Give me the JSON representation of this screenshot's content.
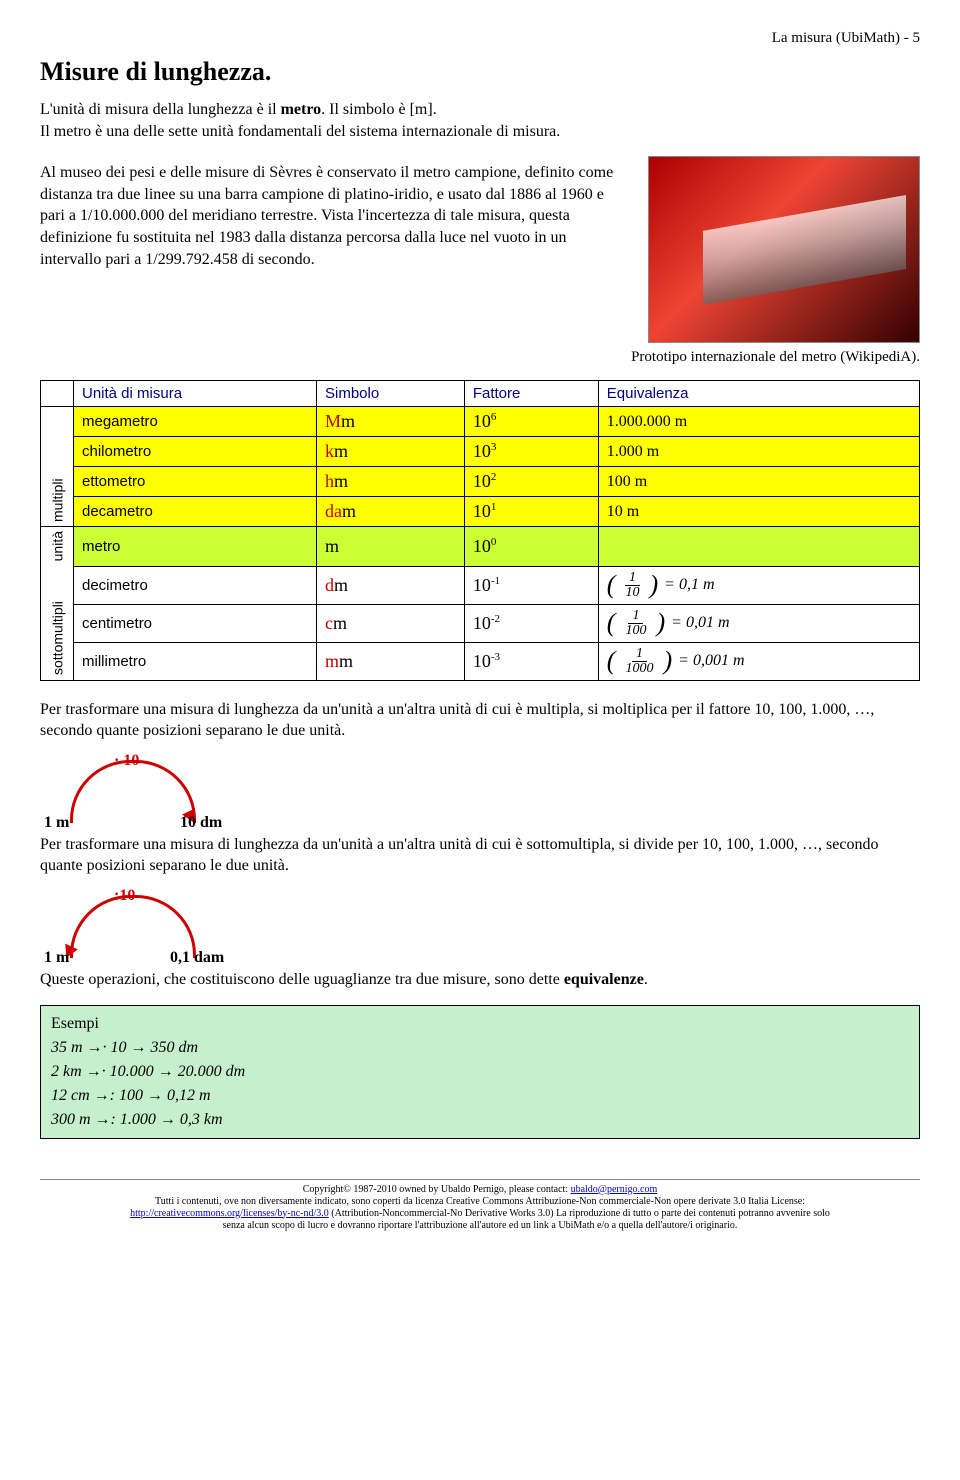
{
  "header_right": "La misura (UbiMath) - 5",
  "title": "Misure di lunghezza.",
  "intro1": "L'unità di misura della lunghezza è il metro. Il simbolo è [m].",
  "intro2": "Il metro è una delle sette unità fondamentali del sistema internazionale di misura.",
  "block": "Al museo dei pesi e delle misure di Sèvres è conservato il metro campione, definito come distanza tra due linee su una barra campione di platino-iridio, e usato dal 1886 al 1960 e pari a 1/10.000.000 del meridiano terrestre. Vista l'incertezza di tale misura, questa definizione fu sostituita nel 1983 dalla distanza percorsa dalla luce nel vuoto in un intervallo pari a 1/299.792.458 di secondo.",
  "caption": "Prototipo internazionale del metro (WikipediA).",
  "table": {
    "side_labels": {
      "multipli": "multipli",
      "unita": "unità",
      "sotto": "sottomultipli"
    },
    "headers": {
      "unit": "Unità di misura",
      "symbol": "Simbolo",
      "factor": "Fattore",
      "equiv": "Equivalenza"
    },
    "rows": [
      {
        "group": "multipli",
        "row_class": "row-yellow",
        "name": "megametro",
        "pre": "M",
        "base": "m",
        "factor_base": "10",
        "factor_exp": "6",
        "equiv_type": "text",
        "equiv_text": "1.000.000 m"
      },
      {
        "group": "multipli",
        "row_class": "row-yellow",
        "name": "chilometro",
        "pre": "k",
        "base": "m",
        "factor_base": "10",
        "factor_exp": "3",
        "equiv_type": "text",
        "equiv_text": "1.000 m"
      },
      {
        "group": "multipli",
        "row_class": "row-yellow",
        "name": "ettometro",
        "pre": "h",
        "base": "m",
        "factor_base": "10",
        "factor_exp": "2",
        "equiv_type": "text",
        "equiv_text": "100 m"
      },
      {
        "group": "multipli",
        "row_class": "row-yellow",
        "name": "decametro",
        "pre": "da",
        "base": "m",
        "factor_base": "10",
        "factor_exp": "1",
        "equiv_type": "text",
        "equiv_text": "10 m"
      },
      {
        "group": "unita",
        "row_class": "row-lime",
        "name": "metro",
        "pre": "",
        "base": "m",
        "factor_base": "10",
        "factor_exp": "0",
        "equiv_type": "none"
      },
      {
        "group": "sotto",
        "row_class": "row-white",
        "name": "decimetro",
        "pre": "d",
        "base": "m",
        "factor_base": "10",
        "factor_exp": "-1",
        "equiv_type": "frac",
        "frac_num": "1",
        "frac_den": "10",
        "frac_rhs": "= 0,1 m"
      },
      {
        "group": "sotto",
        "row_class": "row-white",
        "name": "centimetro",
        "pre": "c",
        "base": "m",
        "factor_base": "10",
        "factor_exp": "-2",
        "equiv_type": "frac",
        "frac_num": "1",
        "frac_den": "100",
        "frac_rhs": "= 0,01 m"
      },
      {
        "group": "sotto",
        "row_class": "row-white",
        "name": "millimetro",
        "pre": "m",
        "base": "m",
        "factor_base": "10",
        "factor_exp": "-3",
        "equiv_type": "frac",
        "frac_num": "1",
        "frac_den": "1000",
        "frac_rhs": "= 0,001 m"
      }
    ]
  },
  "para_mult": "Per trasformare una misura di lunghezza da un'unità a un'altra unità di cui è multipla, si moltiplica per il fattore 10, 100, 1.000, …, secondo quante posizioni separano le due unità.",
  "conv1": {
    "label": "· 10",
    "left": "1  m",
    "right": "10 dm",
    "dir": "right"
  },
  "para_div": "Per trasformare una misura di lunghezza da un'unità a un'altra unità di cui è sottomultipla, si divide per 10, 100, 1.000, …, secondo quante posizioni separano le due unità.",
  "conv2": {
    "label": ":10",
    "left": "1  m",
    "right": "0,1 dam",
    "dir": "left"
  },
  "equiv_line": "Queste operazioni, che costituiscono delle uguaglianze tra due misure, sono dette equivalenze.",
  "examples": {
    "title": "Esempi",
    "lines": [
      "35 m →· 10 → 350 dm",
      "2 km →· 10.000 → 20.000 dm",
      "12 cm →: 100 → 0,12 m",
      "300 m →: 1.000 → 0,3 km"
    ]
  },
  "footer": {
    "l1a": "Copyright© 1987-2010 owned by Ubaldo Pernigo, please contact: ",
    "l1b": "ubaldo@pernigo.com",
    "l2": "Tutti i contenuti, ove non diversamente indicato, sono coperti da licenza Creative Commons Attribuzione-Non commerciale-Non opere derivate 3.0 Italia License:",
    "l3a": "http://creativecommons.org/licenses/by-nc-nd/3.0",
    "l3b": " (Attribution-Noncommercial-No Derivative Works 3.0) La riproduzione di tutto o parte dei contenuti potranno avvenire solo",
    "l4": "senza alcun scopo di lucro e dovranno riportare l'attribuzione all'autore ed un link a UbiMath e/o a quella dell'autore/i originario."
  }
}
